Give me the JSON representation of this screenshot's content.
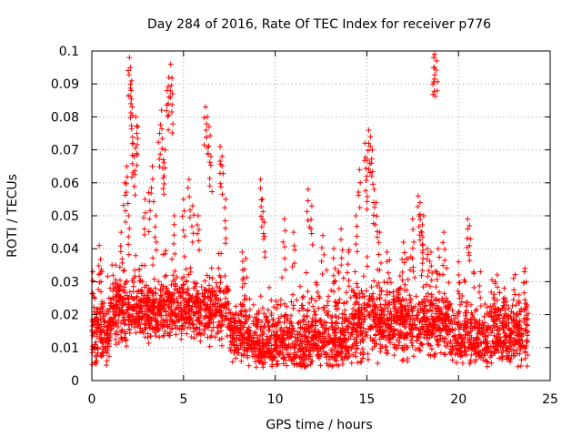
{
  "chart_data": {
    "type": "scatter",
    "title": "Day 284 of 2016, Rate Of TEC Index for receiver p776",
    "xlabel": "GPS time / hours",
    "ylabel": "ROTI / TECUs",
    "xlim": [
      0,
      25
    ],
    "ylim": [
      0,
      0.1
    ],
    "x_ticks": [
      "0",
      "5",
      "10",
      "15",
      "20",
      "25"
    ],
    "y_ticks": [
      "0",
      "0.01",
      "0.02",
      "0.03",
      "0.04",
      "0.05",
      "0.06",
      "0.07",
      "0.08",
      "0.09",
      "0.1"
    ],
    "grid": true,
    "marker": "+",
    "color": "#ff0000",
    "series": [
      {
        "name": "ROTI",
        "note": "dense band ~0.005-0.03 across 0-24 h; representative outliers listed",
        "x": [
          0.05,
          0.15,
          0.4,
          0.5,
          1.0,
          1.3,
          1.6,
          1.8,
          1.9,
          2.0,
          2.05,
          2.1,
          2.15,
          2.2,
          2.25,
          2.3,
          2.4,
          2.5,
          2.9,
          3.1,
          3.3,
          3.5,
          3.7,
          3.8,
          3.9,
          4.0,
          4.1,
          4.2,
          4.3,
          4.4,
          4.5,
          5.0,
          5.3,
          5.5,
          5.8,
          6.2,
          6.3,
          6.4,
          6.5,
          7.0,
          7.1,
          7.3,
          8.2,
          8.4,
          9.2,
          9.3,
          9.4,
          10.5,
          11.0,
          11.8,
          12.0,
          12.6,
          13.2,
          13.6,
          14.0,
          14.4,
          14.6,
          14.9,
          15.0,
          15.1,
          15.2,
          15.3,
          15.4,
          15.5,
          15.7,
          16.1,
          17.0,
          17.5,
          17.8,
          17.9,
          18.0,
          18.1,
          18.3,
          18.5,
          18.65,
          18.7,
          18.8,
          19.2,
          20.0,
          20.5,
          20.6,
          21.2,
          22.0,
          22.5,
          23.0,
          23.3,
          23.6
        ],
        "y": [
          0.033,
          0.025,
          0.041,
          0.03,
          0.028,
          0.035,
          0.045,
          0.06,
          0.065,
          0.05,
          0.098,
          0.095,
          0.088,
          0.083,
          0.072,
          0.068,
          0.08,
          0.077,
          0.055,
          0.057,
          0.065,
          0.05,
          0.075,
          0.082,
          0.067,
          0.07,
          0.088,
          0.092,
          0.096,
          0.087,
          0.05,
          0.055,
          0.061,
          0.053,
          0.05,
          0.083,
          0.08,
          0.077,
          0.068,
          0.071,
          0.068,
          0.055,
          0.039,
          0.037,
          0.061,
          0.055,
          0.048,
          0.049,
          0.045,
          0.058,
          0.053,
          0.044,
          0.04,
          0.046,
          0.039,
          0.05,
          0.064,
          0.072,
          0.062,
          0.076,
          0.074,
          0.07,
          0.058,
          0.054,
          0.045,
          0.039,
          0.042,
          0.049,
          0.056,
          0.054,
          0.045,
          0.05,
          0.04,
          0.039,
          0.098,
          0.099,
          0.097,
          0.045,
          0.036,
          0.049,
          0.047,
          0.033,
          0.03,
          0.028,
          0.031,
          0.026,
          0.033
        ]
      }
    ]
  }
}
